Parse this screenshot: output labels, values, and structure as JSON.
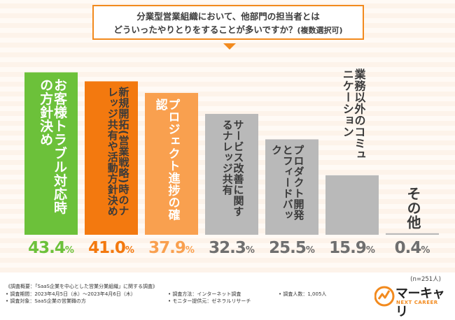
{
  "title": {
    "line1": "分業型営業組織において、他部門の担当者とは",
    "line2": "どういったやりとりをすることが多いですか？",
    "line2_note": "(複数選択可)"
  },
  "chart_data": {
    "type": "bar",
    "title": "分業型営業組織において、他部門の担当者とはどういったやりとりをすることが多いですか？(複数選択可)",
    "categories": [
      "お客様トラブル対応時の方針決め",
      "新規開拓(営業戦略)時のナレッジ共有や活動方針決め",
      "プロジェクト進捗の確認",
      "サービス改善に関するナレッジ共有",
      "プロダクト開発とフィードバック",
      "業務以外のコミュニケーション",
      "その他"
    ],
    "label_lines": [
      [
        "お客様トラブル対応時の",
        "方針決め"
      ],
      [
        "新規開拓",
        "(営業戦略)時の",
        "ナレッジ共有や活動方針決め"
      ],
      [
        "プロジェクト進捗の確認"
      ],
      [
        "サービス改善に関する",
        "ナレッジ共有"
      ],
      [
        "プロダクト開発と",
        "フィードバック"
      ],
      [
        "業務以外の",
        "コミュニケーション"
      ],
      [
        "その他"
      ]
    ],
    "values": [
      43.4,
      41.0,
      37.9,
      32.3,
      25.5,
      15.9,
      0.4
    ],
    "value_labels": [
      "43.4",
      "41.0",
      "37.9",
      "32.3",
      "25.5",
      "15.9",
      "0.4"
    ],
    "unit": "%",
    "ylim": [
      0,
      45
    ],
    "colors": {
      "bars": [
        "#6cc13a",
        "#f3790f",
        "#f9a04f",
        "#b9b9b9",
        "#b9b9b9",
        "#b9b9b9",
        "#b9b9b9"
      ],
      "labels": [
        "#ffffff",
        "#3a3a3a",
        "#ffffff",
        "#3a3a3a",
        "#3a3a3a",
        "#3a3a3a",
        "#3a3a3a"
      ],
      "values": [
        "#6cc13a",
        "#f3790f",
        "#f9a04f",
        "#6f6f6f",
        "#6f6f6f",
        "#6f6f6f",
        "#6f6f6f"
      ]
    }
  },
  "n_note": "(n=251人)",
  "footer": {
    "summary": "《調査概要：「SaaS企業を中心とした営業分業組織」に関する調査》",
    "period": "• 調査期間：2023年4月5日（水）〜2023年4月6日（木）",
    "method": "• 調査方法：インターネット調査",
    "count": "• 調査人数：1,005人",
    "target": "• 調査対象：SaaS企業の営業職の方",
    "provider": "• モニター提供元：ゼネラルリサーチ"
  },
  "logo": {
    "brand": "マーキャリ",
    "sub": "NEXT CAREER",
    "accent": "#f28a1e"
  }
}
